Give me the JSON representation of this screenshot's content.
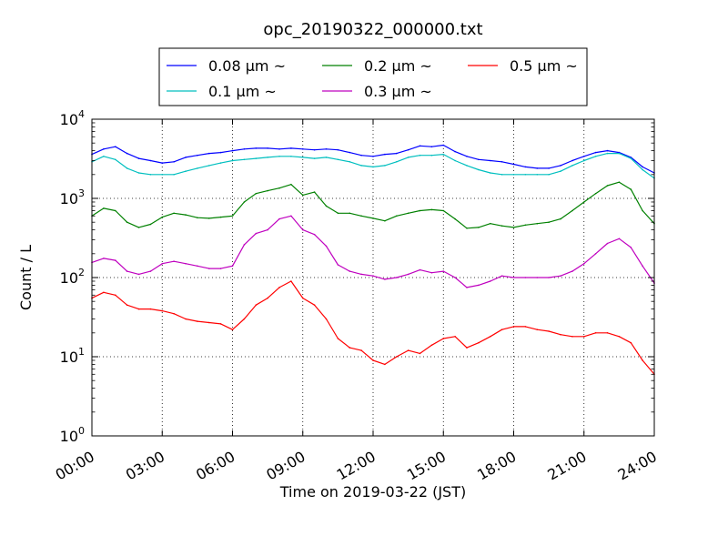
{
  "chart_data": {
    "type": "line",
    "title": "opc_20190322_000000.txt",
    "xlabel": "Time on 2019-03-22 (JST)",
    "ylabel": "Count / L",
    "x_unit": "hours since 00:00",
    "xlim": [
      0,
      24
    ],
    "ylim": [
      1,
      10000
    ],
    "y_scale": "log",
    "grid": true,
    "legend_position": "top-center",
    "x_ticks": [
      {
        "x": 0,
        "label": "00:00"
      },
      {
        "x": 3,
        "label": "03:00"
      },
      {
        "x": 6,
        "label": "06:00"
      },
      {
        "x": 9,
        "label": "09:00"
      },
      {
        "x": 12,
        "label": "12:00"
      },
      {
        "x": 15,
        "label": "15:00"
      },
      {
        "x": 18,
        "label": "18:00"
      },
      {
        "x": 21,
        "label": "21:00"
      },
      {
        "x": 24,
        "label": "24:00"
      }
    ],
    "y_ticks": [
      {
        "y": 1,
        "base": "10",
        "exp": "0"
      },
      {
        "y": 10,
        "base": "10",
        "exp": "1"
      },
      {
        "y": 100,
        "base": "10",
        "exp": "2"
      },
      {
        "y": 1000,
        "base": "10",
        "exp": "3"
      },
      {
        "y": 10000,
        "base": "10",
        "exp": "4"
      }
    ],
    "x": [
      0,
      0.5,
      1,
      1.5,
      2,
      2.5,
      3,
      3.5,
      4,
      4.5,
      5,
      5.5,
      6,
      6.5,
      7,
      7.5,
      8,
      8.5,
      9,
      9.5,
      10,
      10.5,
      11,
      11.5,
      12,
      12.5,
      13,
      13.5,
      14,
      14.5,
      15,
      15.5,
      16,
      16.5,
      17,
      17.5,
      18,
      18.5,
      19,
      19.5,
      20,
      20.5,
      21,
      21.5,
      22,
      22.5,
      23,
      23.5,
      24
    ],
    "series": [
      {
        "name": "0.08 μm ~",
        "color": "#0000ff",
        "values": [
          3600,
          4200,
          4500,
          3700,
          3200,
          3000,
          2800,
          2900,
          3300,
          3500,
          3700,
          3800,
          4000,
          4200,
          4300,
          4300,
          4200,
          4300,
          4200,
          4100,
          4200,
          4100,
          3800,
          3500,
          3400,
          3600,
          3700,
          4100,
          4600,
          4500,
          4700,
          3900,
          3400,
          3100,
          3000,
          2900,
          2700,
          2500,
          2400,
          2400,
          2600,
          3000,
          3400,
          3800,
          4000,
          3800,
          3300,
          2500,
          2100
        ]
      },
      {
        "name": "0.1 μm ~",
        "color": "#00bfbf",
        "values": [
          2900,
          3400,
          3100,
          2400,
          2100,
          2000,
          2000,
          2000,
          2200,
          2400,
          2600,
          2800,
          3000,
          3100,
          3200,
          3300,
          3400,
          3400,
          3300,
          3200,
          3300,
          3100,
          2900,
          2600,
          2500,
          2600,
          2900,
          3300,
          3500,
          3500,
          3600,
          3000,
          2600,
          2300,
          2100,
          2000,
          2000,
          2000,
          2000,
          2000,
          2200,
          2600,
          3000,
          3400,
          3700,
          3700,
          3200,
          2300,
          1800
        ]
      },
      {
        "name": "0.2 μm ~",
        "color": "#008000",
        "values": [
          600,
          750,
          700,
          500,
          430,
          470,
          580,
          650,
          620,
          570,
          560,
          580,
          600,
          900,
          1150,
          1250,
          1350,
          1500,
          1100,
          1200,
          800,
          650,
          650,
          600,
          560,
          520,
          600,
          650,
          700,
          720,
          700,
          550,
          420,
          430,
          480,
          450,
          430,
          460,
          480,
          500,
          550,
          700,
          900,
          1150,
          1450,
          1600,
          1300,
          700,
          480
        ]
      },
      {
        "name": "0.3 μm ~",
        "color": "#bf00bf",
        "values": [
          155,
          175,
          165,
          120,
          110,
          120,
          150,
          160,
          150,
          140,
          130,
          130,
          140,
          260,
          360,
          400,
          550,
          600,
          400,
          350,
          250,
          145,
          120,
          110,
          105,
          95,
          100,
          110,
          125,
          115,
          120,
          100,
          75,
          80,
          90,
          105,
          100,
          100,
          100,
          100,
          105,
          120,
          150,
          200,
          270,
          310,
          240,
          140,
          85
        ]
      },
      {
        "name": "0.5 μm ~",
        "color": "#ff0000",
        "values": [
          55,
          65,
          60,
          45,
          40,
          40,
          38,
          35,
          30,
          28,
          27,
          26,
          22,
          30,
          45,
          55,
          75,
          90,
          55,
          45,
          30,
          17,
          13,
          12,
          9,
          8,
          10,
          12,
          11,
          14,
          17,
          18,
          13,
          15,
          18,
          22,
          24,
          24,
          22,
          21,
          19,
          18,
          18,
          20,
          20,
          18,
          15,
          9,
          6
        ]
      }
    ]
  }
}
